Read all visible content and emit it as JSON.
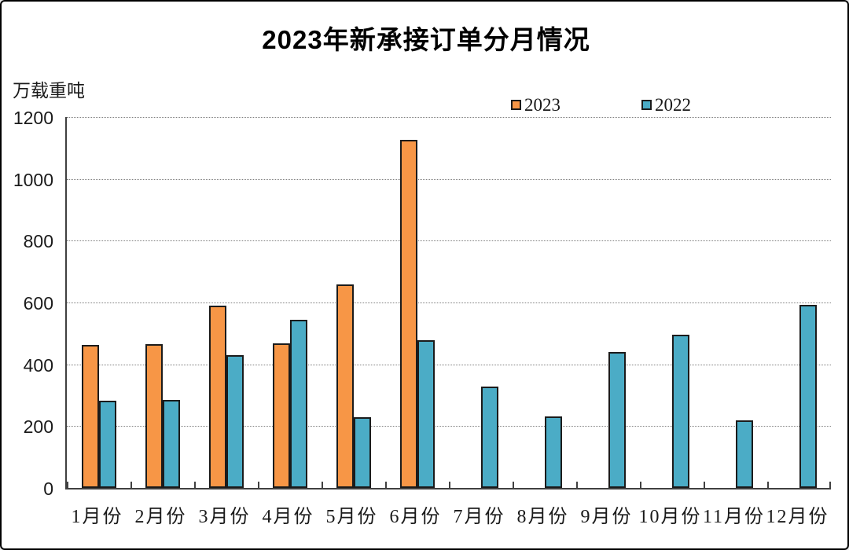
{
  "chart_data": {
    "type": "bar",
    "title": "2023年新承接订单分月情况",
    "ylabel": "万载重吨",
    "categories": [
      "1月份",
      "2月份",
      "3月份",
      "4月份",
      "5月份",
      "6月份",
      "7月份",
      "8月份",
      "9月份",
      "10月份",
      "11月份",
      "12月份"
    ],
    "series": [
      {
        "name": "2023",
        "color": "#F79646",
        "values": [
          462,
          464,
          591,
          467,
          658,
          1125,
          null,
          null,
          null,
          null,
          null,
          null
        ]
      },
      {
        "name": "2022",
        "color": "#4BACC6",
        "values": [
          282,
          285,
          430,
          545,
          230,
          477,
          327,
          232,
          440,
          497,
          219,
          592
        ]
      }
    ],
    "ylim": [
      0,
      1200
    ],
    "yticks": [
      0,
      200,
      400,
      600,
      800,
      1000,
      1200
    ],
    "grid": "horizontal-dotted",
    "legend_position": "top-inside",
    "bar_outline_color": "#1b1b1b",
    "axis_color": "#404040",
    "gridline_color": "#808080"
  }
}
